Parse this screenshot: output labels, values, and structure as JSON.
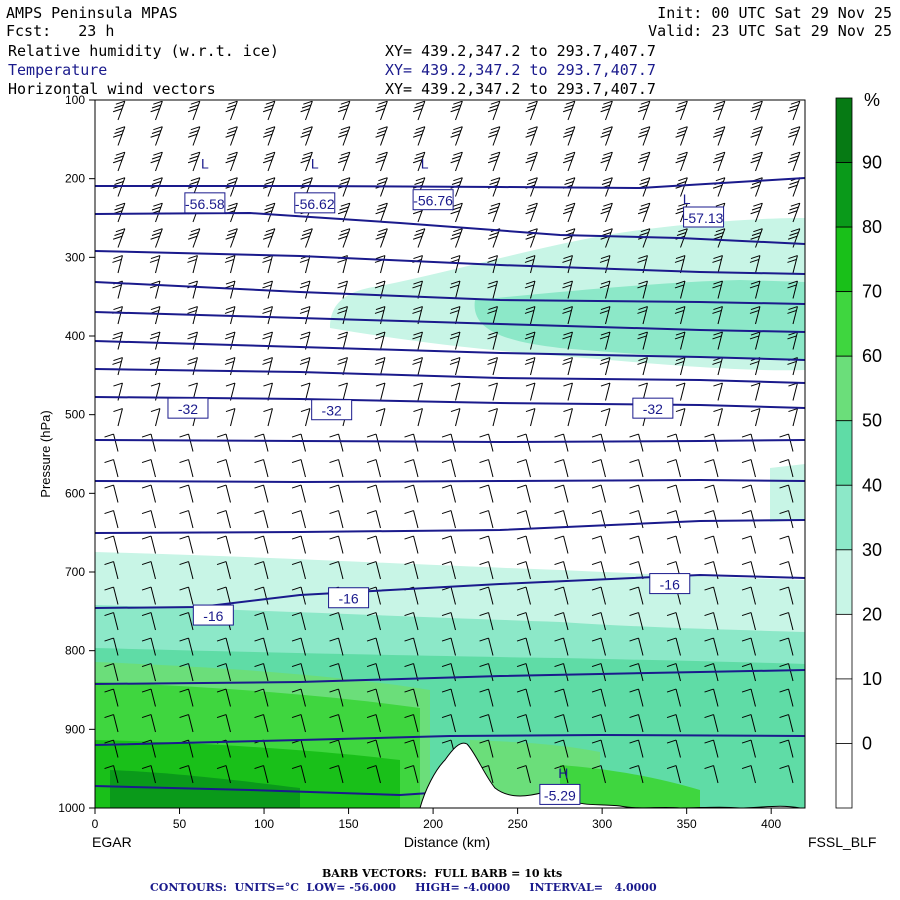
{
  "header": {
    "model": "AMPS Peninsula MPAS",
    "fcst": "Fcst:   23 h",
    "init": "Init: 00 UTC Sat 29 Nov 25",
    "valid": "Valid: 23 UTC Sat 29 Nov 25",
    "field1": "Relative humidity (w.r.t. ice)",
    "field2": "Temperature",
    "field3": "Horizontal wind vectors",
    "xy1": "XY= 439.2,347.2 to 293.7,407.7",
    "xy2": "XY= 439.2,347.2 to 293.7,407.7",
    "xy3": "XY= 439.2,347.2 to 293.7,407.7"
  },
  "footer": {
    "barb": "BARB VECTORS:  FULL BARB = 10 kts",
    "contours": "CONTOURS:  UNITS=°C  LOW= -56.000     HIGH= -4.0000     INTERVAL=   4.0000"
  },
  "colors": {
    "contour": "#1a1a8c",
    "rh_30": "#c8f5e6",
    "rh_40": "#8ce8c8",
    "rh_50": "#5fdca6",
    "rh_60": "#6bde7a",
    "rh_70": "#3fd63f",
    "rh_80": "#19c019",
    "rh_90": "#0a9a1a",
    "rh_100": "#067a14"
  },
  "chart_data": {
    "type": "cross-section",
    "xlabel": "Distance (km)",
    "ylabel": "Pressure (hPa)",
    "x_ticks": [
      0,
      50,
      100,
      150,
      200,
      250,
      300,
      350,
      400
    ],
    "y_ticks": [
      100,
      200,
      300,
      400,
      500,
      600,
      700,
      800,
      900,
      1000
    ],
    "xlim": [
      0,
      420
    ],
    "ylim": [
      1000,
      100
    ],
    "left_label": "EGAR",
    "right_label": "FSSL_BLF",
    "colorbar": {
      "unit": "%",
      "ticks": [
        0,
        10,
        20,
        30,
        40,
        50,
        60,
        70,
        80,
        90
      ]
    },
    "temperature_labels": [
      {
        "text": "-32",
        "x": 55,
        "p": 493
      },
      {
        "text": "-32",
        "x": 140,
        "p": 495
      },
      {
        "text": "-32",
        "x": 330,
        "p": 493
      },
      {
        "text": "-16",
        "x": 70,
        "p": 756
      },
      {
        "text": "-16",
        "x": 150,
        "p": 734
      },
      {
        "text": "-16",
        "x": 340,
        "p": 716
      },
      {
        "text": "-56.58",
        "x": 65,
        "p": 232
      },
      {
        "text": "-56.62",
        "x": 130,
        "p": 232
      },
      {
        "text": "-56.76",
        "x": 200,
        "p": 228
      },
      {
        "text": "-57.13",
        "x": 360,
        "p": 250
      },
      {
        "text": "-5.29",
        "x": 275,
        "p": 984
      }
    ],
    "extrema_marks": [
      {
        "text": "L",
        "x": 65,
        "p": 187
      },
      {
        "text": "L",
        "x": 130,
        "p": 187
      },
      {
        "text": "L",
        "x": 195,
        "p": 187
      },
      {
        "text": "L",
        "x": 350,
        "p": 232
      },
      {
        "text": "H",
        "x": 277,
        "p": 962
      }
    ]
  }
}
